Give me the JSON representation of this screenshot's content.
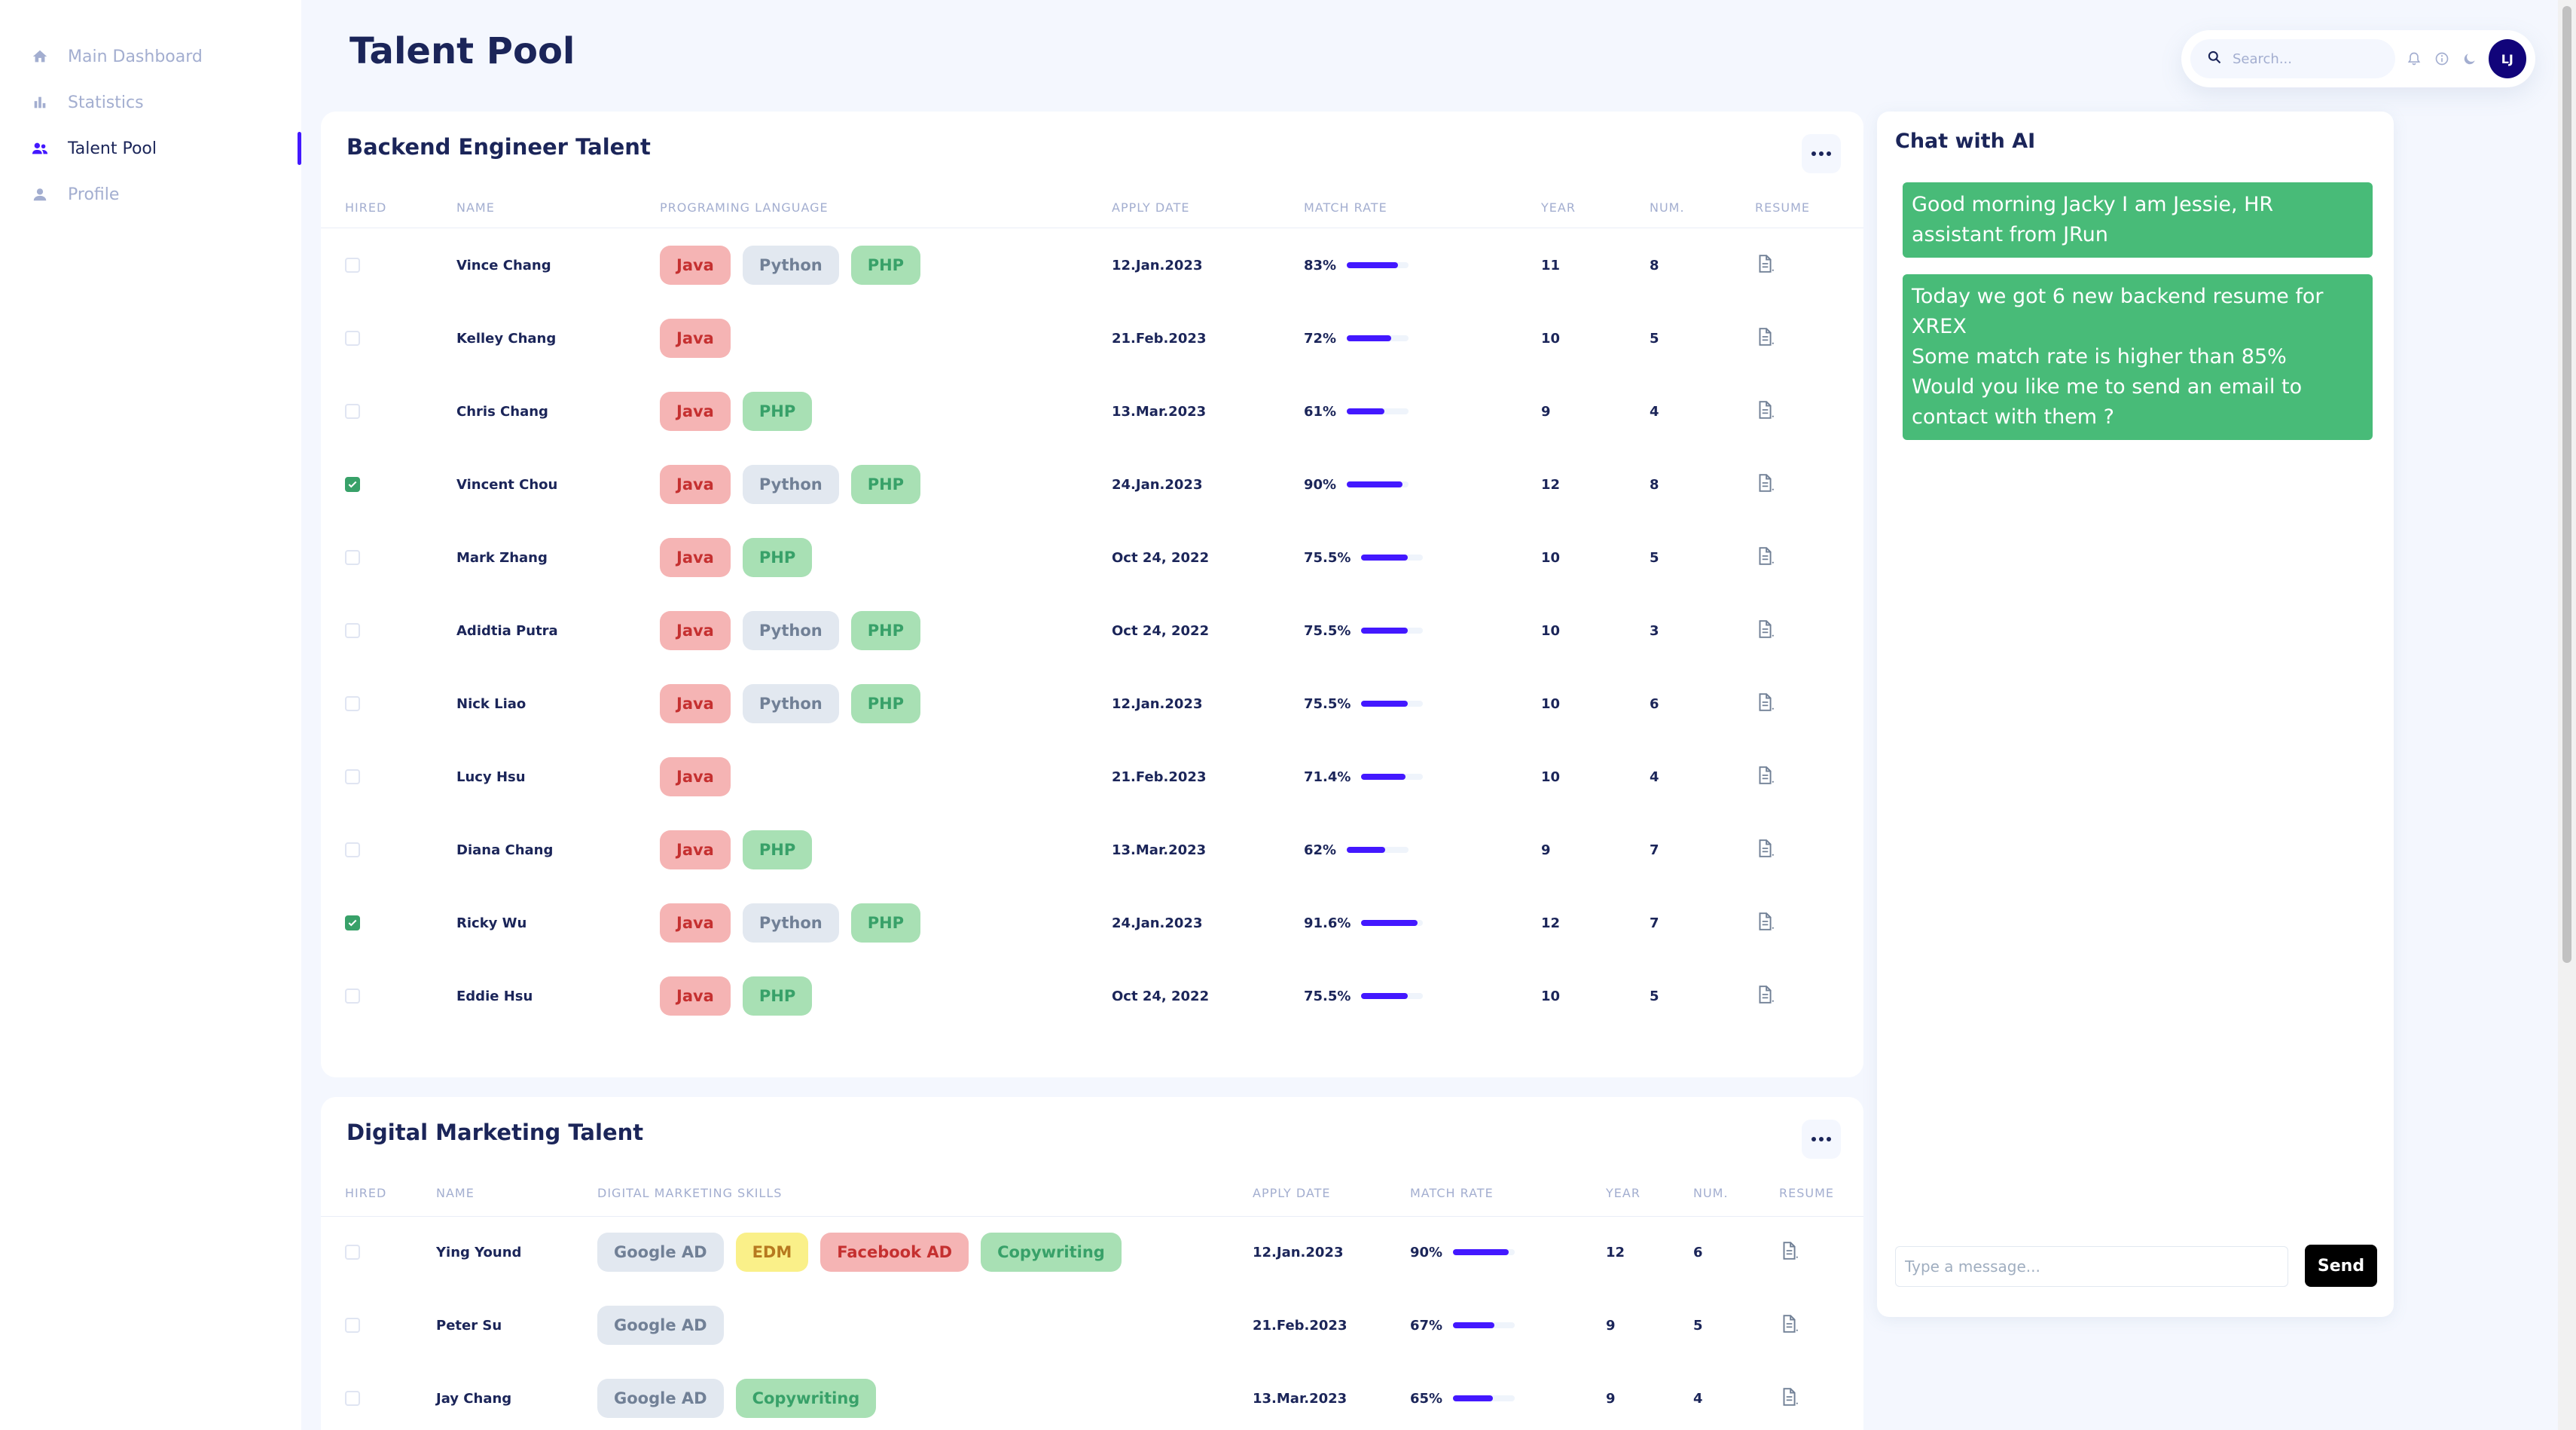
{
  "sidebar": {
    "items": [
      {
        "label": "Main Dashboard",
        "icon": "home-icon"
      },
      {
        "label": "Statistics",
        "icon": "bar-chart-icon"
      },
      {
        "label": "Talent Pool",
        "icon": "people-icon",
        "active": true
      },
      {
        "label": "Profile",
        "icon": "person-icon"
      }
    ]
  },
  "header": {
    "title": "Talent Pool"
  },
  "topbar": {
    "search_placeholder": "Search...",
    "avatar_initials": "LJ"
  },
  "backend": {
    "title": "Backend Engineer Talent",
    "columns": [
      "HIRED",
      "NAME",
      "PROGRAMING LANGUAGE",
      "APPLY DATE",
      "MATCH RATE",
      "YEAR",
      "NUM.",
      "RESUME"
    ],
    "rows": [
      {
        "hired": false,
        "name": "Vince Chang",
        "tags": [
          "Java",
          "Python",
          "PHP"
        ],
        "date": "12.Jan.2023",
        "rate": "83%",
        "rate_value": 0.83,
        "year": "11",
        "num": "8"
      },
      {
        "hired": false,
        "name": "Kelley Chang",
        "tags": [
          "Java"
        ],
        "date": "21.Feb.2023",
        "rate": "72%",
        "rate_value": 0.72,
        "year": "10",
        "num": "5"
      },
      {
        "hired": false,
        "name": "Chris Chang",
        "tags": [
          "Java",
          "PHP"
        ],
        "date": "13.Mar.2023",
        "rate": "61%",
        "rate_value": 0.61,
        "year": "9",
        "num": "4"
      },
      {
        "hired": true,
        "name": "Vincent Chou",
        "tags": [
          "Java",
          "Python",
          "PHP"
        ],
        "date": "24.Jan.2023",
        "rate": "90%",
        "rate_value": 0.9,
        "year": "12",
        "num": "8"
      },
      {
        "hired": false,
        "name": "Mark Zhang",
        "tags": [
          "Java",
          "PHP"
        ],
        "date": "Oct 24, 2022",
        "rate": "75.5%",
        "rate_value": 0.755,
        "year": "10",
        "num": "5"
      },
      {
        "hired": false,
        "name": "Adidtia Putra",
        "tags": [
          "Java",
          "Python",
          "PHP"
        ],
        "date": "Oct 24, 2022",
        "rate": "75.5%",
        "rate_value": 0.755,
        "year": "10",
        "num": "3"
      },
      {
        "hired": false,
        "name": "Nick Liao",
        "tags": [
          "Java",
          "Python",
          "PHP"
        ],
        "date": "12.Jan.2023",
        "rate": "75.5%",
        "rate_value": 0.755,
        "year": "10",
        "num": "6"
      },
      {
        "hired": false,
        "name": "Lucy Hsu",
        "tags": [
          "Java"
        ],
        "date": "21.Feb.2023",
        "rate": "71.4%",
        "rate_value": 0.714,
        "year": "10",
        "num": "4"
      },
      {
        "hired": false,
        "name": "Diana Chang",
        "tags": [
          "Java",
          "PHP"
        ],
        "date": "13.Mar.2023",
        "rate": "62%",
        "rate_value": 0.62,
        "year": "9",
        "num": "7"
      },
      {
        "hired": true,
        "name": "Ricky Wu",
        "tags": [
          "Java",
          "Python",
          "PHP"
        ],
        "date": "24.Jan.2023",
        "rate": "91.6%",
        "rate_value": 0.916,
        "year": "12",
        "num": "7"
      },
      {
        "hired": false,
        "name": "Eddie Hsu",
        "tags": [
          "Java",
          "PHP"
        ],
        "date": "Oct 24, 2022",
        "rate": "75.5%",
        "rate_value": 0.755,
        "year": "10",
        "num": "5"
      }
    ]
  },
  "marketing": {
    "title": "Digital Marketing Talent",
    "columns": [
      "HIRED",
      "NAME",
      "DIGITAL MARKETING SKILLS",
      "APPLY DATE",
      "MATCH RATE",
      "YEAR",
      "NUM.",
      "RESUME"
    ],
    "rows": [
      {
        "hired": false,
        "name": "Ying Yound",
        "tags": [
          "Google AD",
          "EDM",
          "Facebook AD",
          "Copywriting"
        ],
        "date": "12.Jan.2023",
        "rate": "90%",
        "rate_value": 0.9,
        "year": "12",
        "num": "6"
      },
      {
        "hired": false,
        "name": "Peter Su",
        "tags": [
          "Google AD"
        ],
        "date": "21.Feb.2023",
        "rate": "67%",
        "rate_value": 0.67,
        "year": "9",
        "num": "5"
      },
      {
        "hired": false,
        "name": "Jay Chang",
        "tags": [
          "Google AD",
          "Copywriting"
        ],
        "date": "13.Mar.2023",
        "rate": "65%",
        "rate_value": 0.65,
        "year": "9",
        "num": "4"
      }
    ]
  },
  "tag_colors": {
    "Java": "red",
    "Python": "gray",
    "PHP": "green",
    "Google AD": "gray",
    "EDM": "yellow",
    "Facebook AD": "red",
    "Copywriting": "green"
  },
  "chat": {
    "title": "Chat with AI",
    "messages": [
      {
        "lines": [
          "Good morning Jacky I am Jessie, HR assistant from JRun"
        ]
      },
      {
        "lines": [
          "Today we got 6 new backend resume for XREX",
          "Some match rate is higher than 85%",
          "Would you like me to send an email to contact with them ?"
        ]
      }
    ],
    "input_placeholder": "Type a message...",
    "send_label": "Send"
  },
  "colors": {
    "accent": "#4318ff",
    "chat_bubble": "#48bb78",
    "avatar": "#11047a"
  }
}
